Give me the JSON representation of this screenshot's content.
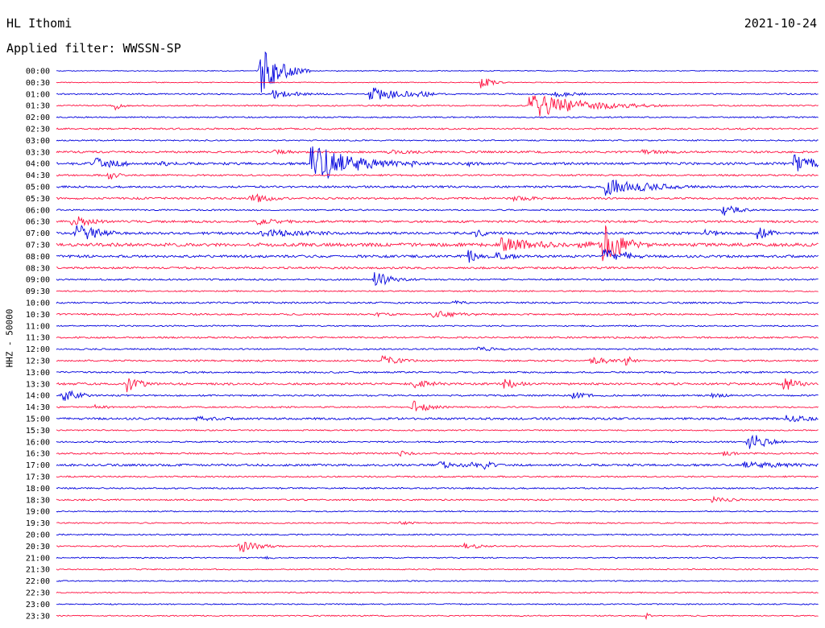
{
  "header": {
    "station": "HL Ithomi",
    "date": "2021-10-24",
    "filter": "Applied filter: WWSSN-SP"
  },
  "channel_label": "HHZ - 50000",
  "colors": {
    "even_trace": "#0000dd",
    "odd_trace": "#ff1040",
    "text": "#000000"
  },
  "chart_data": {
    "type": "line",
    "title": "HL Ithomi",
    "subtitle": "Applied filter: WWSSN-SP",
    "ylabel": "HHZ - 50000",
    "xlabel": "",
    "grid": false,
    "legend": "none",
    "x_range_minutes": [
      0,
      30
    ],
    "row_labels": [
      "00:00",
      "00:30",
      "01:00",
      "01:30",
      "02:00",
      "02:30",
      "03:00",
      "03:30",
      "04:00",
      "04:30",
      "05:00",
      "05:30",
      "06:00",
      "06:30",
      "07:00",
      "07:30",
      "08:00",
      "08:30",
      "09:00",
      "09:30",
      "10:00",
      "10:30",
      "11:00",
      "11:30",
      "12:00",
      "12:30",
      "13:00",
      "13:30",
      "14:00",
      "14:30",
      "15:00",
      "15:30",
      "16:00",
      "16:30",
      "17:00",
      "17:30",
      "18:00",
      "18:30",
      "19:00",
      "19:30",
      "20:00",
      "20:30",
      "21:00",
      "21:30",
      "22:00",
      "22:30",
      "23:00",
      "23:30"
    ],
    "noise_level": [
      0.5,
      0.5,
      0.8,
      0.8,
      0.8,
      1.0,
      0.8,
      1.2,
      1.5,
      1.0,
      1.2,
      1.2,
      0.9,
      1.3,
      1.5,
      2.0,
      1.5,
      1.2,
      1.0,
      0.8,
      1.0,
      1.0,
      0.8,
      1.0,
      0.9,
      1.0,
      1.0,
      1.3,
      1.0,
      0.9,
      1.3,
      0.8,
      0.9,
      1.0,
      1.3,
      0.9,
      0.9,
      0.9,
      0.7,
      0.8,
      0.8,
      0.8,
      0.7,
      0.7,
      0.7,
      0.7,
      0.7,
      0.7
    ],
    "events": [
      {
        "row": 0,
        "t": 8.0,
        "amp": 32,
        "dur": 0.8
      },
      {
        "row": 1,
        "t": 16.7,
        "amp": 9,
        "dur": 0.4
      },
      {
        "row": 2,
        "t": 8.5,
        "amp": 6,
        "dur": 1.2
      },
      {
        "row": 2,
        "t": 12.3,
        "amp": 9,
        "dur": 1.5
      },
      {
        "row": 2,
        "t": 14.2,
        "amp": 5,
        "dur": 0.8
      },
      {
        "row": 2,
        "t": 19.5,
        "amp": 5,
        "dur": 1.0
      },
      {
        "row": 3,
        "t": 2.3,
        "amp": 6,
        "dur": 0.3
      },
      {
        "row": 3,
        "t": 18.6,
        "amp": 16,
        "dur": 2.2
      },
      {
        "row": 7,
        "t": 8.5,
        "amp": 3,
        "dur": 1.5
      },
      {
        "row": 7,
        "t": 13.0,
        "amp": 3,
        "dur": 2.0
      },
      {
        "row": 7,
        "t": 23.0,
        "amp": 3,
        "dur": 2.0
      },
      {
        "row": 8,
        "t": 1.5,
        "amp": 8,
        "dur": 1.2
      },
      {
        "row": 8,
        "t": 4.1,
        "amp": 5,
        "dur": 0.6
      },
      {
        "row": 8,
        "t": 10.0,
        "amp": 28,
        "dur": 1.6
      },
      {
        "row": 8,
        "t": 11.3,
        "amp": 5,
        "dur": 1.0
      },
      {
        "row": 8,
        "t": 14.0,
        "amp": 4,
        "dur": 0.6
      },
      {
        "row": 8,
        "t": 16.1,
        "amp": 4,
        "dur": 0.8
      },
      {
        "row": 8,
        "t": 29.0,
        "amp": 12,
        "dur": 1.2
      },
      {
        "row": 9,
        "t": 2.0,
        "amp": 8,
        "dur": 0.4
      },
      {
        "row": 10,
        "t": 21.6,
        "amp": 12,
        "dur": 1.8
      },
      {
        "row": 11,
        "t": 7.6,
        "amp": 8,
        "dur": 0.8
      },
      {
        "row": 11,
        "t": 18.0,
        "amp": 3,
        "dur": 2.0
      },
      {
        "row": 12,
        "t": 26.2,
        "amp": 9,
        "dur": 0.6
      },
      {
        "row": 13,
        "t": 0.6,
        "amp": 9,
        "dur": 0.8
      },
      {
        "row": 13,
        "t": 7.9,
        "amp": 4,
        "dur": 2.0
      },
      {
        "row": 14,
        "t": 0.7,
        "amp": 14,
        "dur": 1.0
      },
      {
        "row": 14,
        "t": 8.0,
        "amp": 5,
        "dur": 3.0
      },
      {
        "row": 14,
        "t": 16.5,
        "amp": 5,
        "dur": 1.0
      },
      {
        "row": 14,
        "t": 25.5,
        "amp": 5,
        "dur": 1.0
      },
      {
        "row": 14,
        "t": 27.5,
        "amp": 10,
        "dur": 0.6
      },
      {
        "row": 15,
        "t": 17.5,
        "amp": 9,
        "dur": 2.0
      },
      {
        "row": 15,
        "t": 21.5,
        "amp": 28,
        "dur": 0.8
      },
      {
        "row": 15,
        "t": 20.5,
        "amp": 6,
        "dur": 1.5
      },
      {
        "row": 16,
        "t": 16.2,
        "amp": 10,
        "dur": 0.5
      },
      {
        "row": 16,
        "t": 17.3,
        "amp": 5,
        "dur": 1.0
      },
      {
        "row": 16,
        "t": 21.5,
        "amp": 10,
        "dur": 1.0
      },
      {
        "row": 16,
        "t": 22.4,
        "amp": 6,
        "dur": 0.5
      },
      {
        "row": 18,
        "t": 12.5,
        "amp": 11,
        "dur": 0.8
      },
      {
        "row": 20,
        "t": 15.6,
        "amp": 4,
        "dur": 0.5
      },
      {
        "row": 21,
        "t": 14.8,
        "amp": 5,
        "dur": 1.5
      },
      {
        "row": 21,
        "t": 12.5,
        "amp": 3,
        "dur": 1.0
      },
      {
        "row": 24,
        "t": 16.5,
        "amp": 3,
        "dur": 1.5
      },
      {
        "row": 25,
        "t": 12.8,
        "amp": 7,
        "dur": 0.8
      },
      {
        "row": 25,
        "t": 21.0,
        "amp": 6,
        "dur": 1.0
      },
      {
        "row": 25,
        "t": 22.4,
        "amp": 8,
        "dur": 0.3
      },
      {
        "row": 27,
        "t": 2.7,
        "amp": 12,
        "dur": 0.6
      },
      {
        "row": 27,
        "t": 14.0,
        "amp": 6,
        "dur": 1.0
      },
      {
        "row": 27,
        "t": 17.6,
        "amp": 8,
        "dur": 0.6
      },
      {
        "row": 27,
        "t": 28.6,
        "amp": 10,
        "dur": 0.6
      },
      {
        "row": 28,
        "t": 0.2,
        "amp": 9,
        "dur": 0.8
      },
      {
        "row": 28,
        "t": 20.3,
        "amp": 4,
        "dur": 1.0
      },
      {
        "row": 28,
        "t": 25.8,
        "amp": 3,
        "dur": 1.0
      },
      {
        "row": 29,
        "t": 14.0,
        "amp": 9,
        "dur": 0.7
      },
      {
        "row": 29,
        "t": 1.5,
        "amp": 3,
        "dur": 1.0
      },
      {
        "row": 30,
        "t": 5.5,
        "amp": 3,
        "dur": 2.0
      },
      {
        "row": 30,
        "t": 28.7,
        "amp": 5,
        "dur": 1.2
      },
      {
        "row": 32,
        "t": 27.2,
        "amp": 16,
        "dur": 0.6
      },
      {
        "row": 33,
        "t": 13.5,
        "amp": 4,
        "dur": 0.6
      },
      {
        "row": 33,
        "t": 26.2,
        "amp": 4,
        "dur": 0.6
      },
      {
        "row": 34,
        "t": 15.0,
        "amp": 6,
        "dur": 0.8
      },
      {
        "row": 34,
        "t": 16.0,
        "amp": 9,
        "dur": 0.5
      },
      {
        "row": 34,
        "t": 16.8,
        "amp": 7,
        "dur": 0.4
      },
      {
        "row": 34,
        "t": 27.0,
        "amp": 5,
        "dur": 2.5
      },
      {
        "row": 37,
        "t": 25.8,
        "amp": 4,
        "dur": 1.0
      },
      {
        "row": 39,
        "t": 13.5,
        "amp": 2,
        "dur": 1.5
      },
      {
        "row": 41,
        "t": 7.2,
        "amp": 9,
        "dur": 0.8
      },
      {
        "row": 41,
        "t": 16.0,
        "amp": 5,
        "dur": 0.8
      },
      {
        "row": 42,
        "t": 8.2,
        "amp": 3,
        "dur": 0.4
      },
      {
        "row": 47,
        "t": 23.2,
        "amp": 4,
        "dur": 0.2
      }
    ]
  }
}
